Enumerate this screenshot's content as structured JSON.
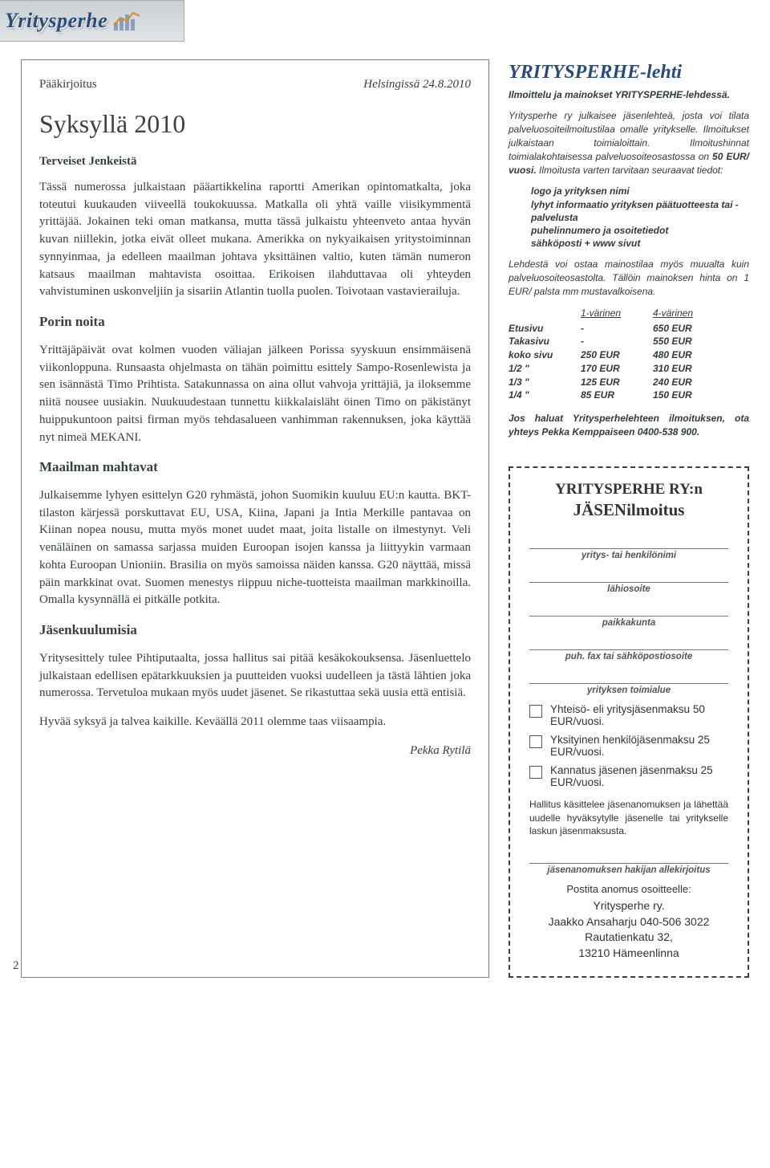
{
  "masthead": {
    "logo": "Yritysperhe"
  },
  "editorial": {
    "label": "Pääkirjoitus",
    "dateline": "Helsingissä 24.8.2010",
    "title": "Syksyllä 2010",
    "subtitle": "Terveiset Jenkeistä",
    "p1": "Tässä numerossa julkaistaan pääartikkelina raportti Amerikan opintomatkalta, joka toteutui kuukauden viiveellä toukokuussa. Matkalla oli yhtä vaille viisikymmentä yrittäjää. Jokainen teki oman matkansa, mutta tässä julkaistu yhteenveto antaa hyvän kuvan niillekin, jotka eivät olleet mukana. Amerikka on nykyaikaisen yritystoiminnan synnyinmaa, ja edelleen maailman johtava yksittäinen valtio, kuten tämän numeron katsaus maailman mahtavista osoittaa. Erikoisen ilahduttavaa oli yhteyden vahvistuminen uskonveljiin ja sisariin Atlantin tuolla puolen. Toivotaan vastavierailuja.",
    "h2a": "Porin noita",
    "p2": "Yrittäjäpäivät ovat kolmen vuoden väliajan jälkeen Porissa syyskuun ensimmäisenä viikonloppuna. Runsaasta ohjelmasta on tähän poimittu esittely Sampo-Rosenlewista ja sen isännästä Timo Prihtista. Satakunnassa on aina ollut vahvoja yrittäjiä, ja iloksemme niitä nousee uusiakin. Nuukuudestaan tunnettu kiikkalaisläht öinen Timo on päkistänyt huippukuntoon paitsi firman myös tehdasalueen vanhimman rakennuksen, joka käyttää nyt nimeä MEKANI.",
    "h2b": "Maailman mahtavat",
    "p3": "Julkaisemme lyhyen esittelyn G20 ryhmästä, johon Suomikin kuuluu EU:n kautta. BKT-tilaston kärjessä porskuttavat EU, USA, Kiina, Japani ja Intia Merkille pantavaa on Kiinan nopea nousu, mutta myös monet uudet maat, joita listalle on ilmestynyt. Veli venäläinen on samassa sarjassa muiden Euroopan isojen kanssa ja liittyykin varmaan kohta Euroopan Unioniin. Brasilia on myös samoissa näiden kanssa. G20 näyttää, missä päin markkinat ovat. Suomen menestys riippuu niche-tuotteista maailman markkinoilla. Omalla kysynnällä ei pitkälle potkita.",
    "h2c": "Jäsenkuulumisia",
    "p4": "Yritysesittely tulee Pihtiputaalta, jossa hallitus sai pitää kesäkokouksensa. Jäsenluettelo julkaistaan edellisen epätarkkuuksien ja puutteiden vuoksi uudelleen ja tästä lähtien joka numerossa. Tervetuloa mukaan myös uudet jäsenet. Se rikastuttaa sekä uusia että entisiä.",
    "p5": "Hyvää syksyä ja talvea kaikille. Keväällä 2011 olemme taas viisaampia.",
    "signature": "Pekka Rytilä"
  },
  "ad": {
    "title": "YRITYSPERHE-lehti",
    "sub": "Ilmoittelu ja mainokset YRITYSPERHE-lehdessä.",
    "p1a": "Yritysperhe ry julkaisee jäsenlehteä, josta voi tilata palveluosoiteilmoitustilaa omalle yritykselle. Ilmoitukset julkaistaan toimialoittain. Ilmoitushinnat toimialakohtaisessa palveluosoiteosastossa on ",
    "p1_price": "50 EUR/ vuosi.",
    "p1b": " Ilmoitusta varten tarvitaan seuraavat tiedot:",
    "list": [
      "logo ja yrityksen nimi",
      "lyhyt informaatio yrityksen päätuotteesta tai -palvelusta",
      "puhelinnumero ja osoitetiedot",
      "sähköposti + www sivut"
    ],
    "p2": "Lehdestä voi ostaa mainostilaa myös muualta kuin palveluosoiteosastolta. Tällöin mainoksen hinta on 1 EUR/ palsta mm mustavalkoisena.",
    "price_headers": [
      "",
      "1-värinen",
      "4-värinen"
    ],
    "prices": [
      {
        "label": "Etusivu",
        "c1": "-",
        "c4": "650 EUR"
      },
      {
        "label": "Takasivu",
        "c1": "-",
        "c4": "550 EUR"
      },
      {
        "label": "koko sivu",
        "c1": "250 EUR",
        "c4": "480 EUR"
      },
      {
        "label": "1/2   \"",
        "c1": "170 EUR",
        "c4": "310 EUR"
      },
      {
        "label": "1/3   \"",
        "c1": "125 EUR",
        "c4": "240 EUR"
      },
      {
        "label": "1/4   \"",
        "c1": "85 EUR",
        "c4": "150 EUR"
      }
    ],
    "contact": "Jos haluat Yritysperhelehteen ilmoituksen, ota yhteys Pekka Kemppaiseen 0400-538 900."
  },
  "form": {
    "title1": "YRITYSPERHE RY:n",
    "title2": "JÄSENilmoitus",
    "fields": [
      "yritys- tai henkilönimi",
      "lähiosoite",
      "paikkakunta",
      "puh. fax tai sähköpostiosoite",
      "yrityksen toimialue"
    ],
    "options": [
      "Yhteisö- eli yritysjäsenmaksu 50 EUR/vuosi.",
      "Yksityinen henkilöjäsenmaksu 25 EUR/vuosi.",
      "Kannatus jäsenen jäsenmaksu 25 EUR/vuosi."
    ],
    "note": "Hallitus käsittelee jäsenanomuksen ja lähettää uudelle hyväksytylle jäsenelle tai yritykselle laskun jäsenmaksusta.",
    "sigfield": "jäsenanomuksen hakijan allekirjoitus",
    "post": "Postita anomus osoitteelle:",
    "addr1": "Yritysperhe ry.",
    "addr2": "Jaakko Ansaharju 040-506 3022",
    "addr3": "Rautatienkatu 32,",
    "addr4": "13210 Hämeenlinna"
  },
  "page_number": "2"
}
